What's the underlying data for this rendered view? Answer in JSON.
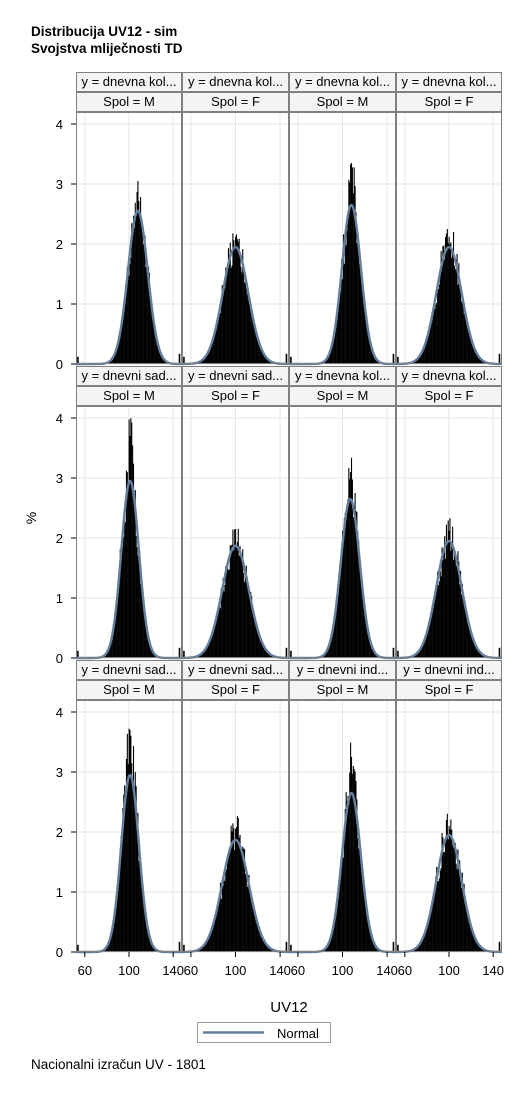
{
  "titles": [
    "Distribucija UV12 - sim",
    "Svojstva mliječnosti TD"
  ],
  "footnote": "Nacionalni izračun UV - 1801",
  "colors": {
    "histogram": "#000000",
    "normal_curve": "#667e9e",
    "grid": "#e6e6e6",
    "frame": "#808080",
    "header_bg": "#f4f4f4"
  },
  "chart_data": {
    "type": "panel-histogram",
    "xlabel": "UV12",
    "ylabel": "%",
    "x_ticks": [
      60,
      100,
      140
    ],
    "xlim": [
      52,
      148
    ],
    "y_ticks": [
      0,
      1,
      2,
      3,
      4
    ],
    "ylim": [
      0,
      4.2
    ],
    "grid": true,
    "legend": {
      "position": "bottom-center",
      "entries": [
        "Normal"
      ]
    },
    "panels": [
      {
        "row": 1,
        "col": 1,
        "row_label": "y = dnevna kol...",
        "col_label": "Spol = M",
        "curve_mean": 108,
        "curve_sd": 9,
        "curve_peak": 2.55,
        "hist_peak": 3.05
      },
      {
        "row": 1,
        "col": 2,
        "row_label": "y = dnevna kol...",
        "col_label": "Spol = F",
        "curve_mean": 100,
        "curve_sd": 11.5,
        "curve_peak": 1.95,
        "hist_peak": 2.12
      },
      {
        "row": 1,
        "col": 3,
        "row_label": "y = dnevna kol...",
        "col_label": "Spol = M",
        "curve_mean": 108,
        "curve_sd": 8.5,
        "curve_peak": 2.65,
        "hist_peak": 3.35
      },
      {
        "row": 1,
        "col": 4,
        "row_label": "y = dnevna kol...",
        "col_label": "Spol = F",
        "curve_mean": 100,
        "curve_sd": 11.5,
        "curve_peak": 1.95,
        "hist_peak": 2.12
      },
      {
        "row": 2,
        "col": 1,
        "row_label": "y = dnevni sad...",
        "col_label": "Spol = M",
        "curve_mean": 101,
        "curve_sd": 8,
        "curve_peak": 2.95,
        "hist_peak": 3.7
      },
      {
        "row": 2,
        "col": 2,
        "row_label": "y = dnevni sad...",
        "col_label": "Spol = F",
        "curve_mean": 100,
        "curve_sd": 12,
        "curve_peak": 1.87,
        "hist_peak": 2.15
      },
      {
        "row": 2,
        "col": 3,
        "row_label": "y = dnevna kol...",
        "col_label": "Spol = M",
        "curve_mean": 107,
        "curve_sd": 8.5,
        "curve_peak": 2.65,
        "hist_peak": 3.1
      },
      {
        "row": 2,
        "col": 4,
        "row_label": "y = dnevna kol...",
        "col_label": "Spol = F",
        "curve_mean": 100,
        "curve_sd": 11.5,
        "curve_peak": 1.95,
        "hist_peak": 2.12
      },
      {
        "row": 3,
        "col": 1,
        "row_label": "y = dnevni sad...",
        "col_label": "Spol = M",
        "curve_mean": 101,
        "curve_sd": 8,
        "curve_peak": 2.95,
        "hist_peak": 3.7
      },
      {
        "row": 3,
        "col": 2,
        "row_label": "y = dnevni sad...",
        "col_label": "Spol = F",
        "curve_mean": 100,
        "curve_sd": 12,
        "curve_peak": 1.87,
        "hist_peak": 2.05
      },
      {
        "row": 3,
        "col": 3,
        "row_label": "y = dnevni ind...",
        "col_label": "Spol = M",
        "curve_mean": 108,
        "curve_sd": 8.5,
        "curve_peak": 2.65,
        "hist_peak": 3.25
      },
      {
        "row": 3,
        "col": 4,
        "row_label": "y = dnevni ind...",
        "col_label": "Spol = F",
        "curve_mean": 100,
        "curve_sd": 11.5,
        "curve_peak": 1.95,
        "hist_peak": 2.1
      }
    ]
  }
}
